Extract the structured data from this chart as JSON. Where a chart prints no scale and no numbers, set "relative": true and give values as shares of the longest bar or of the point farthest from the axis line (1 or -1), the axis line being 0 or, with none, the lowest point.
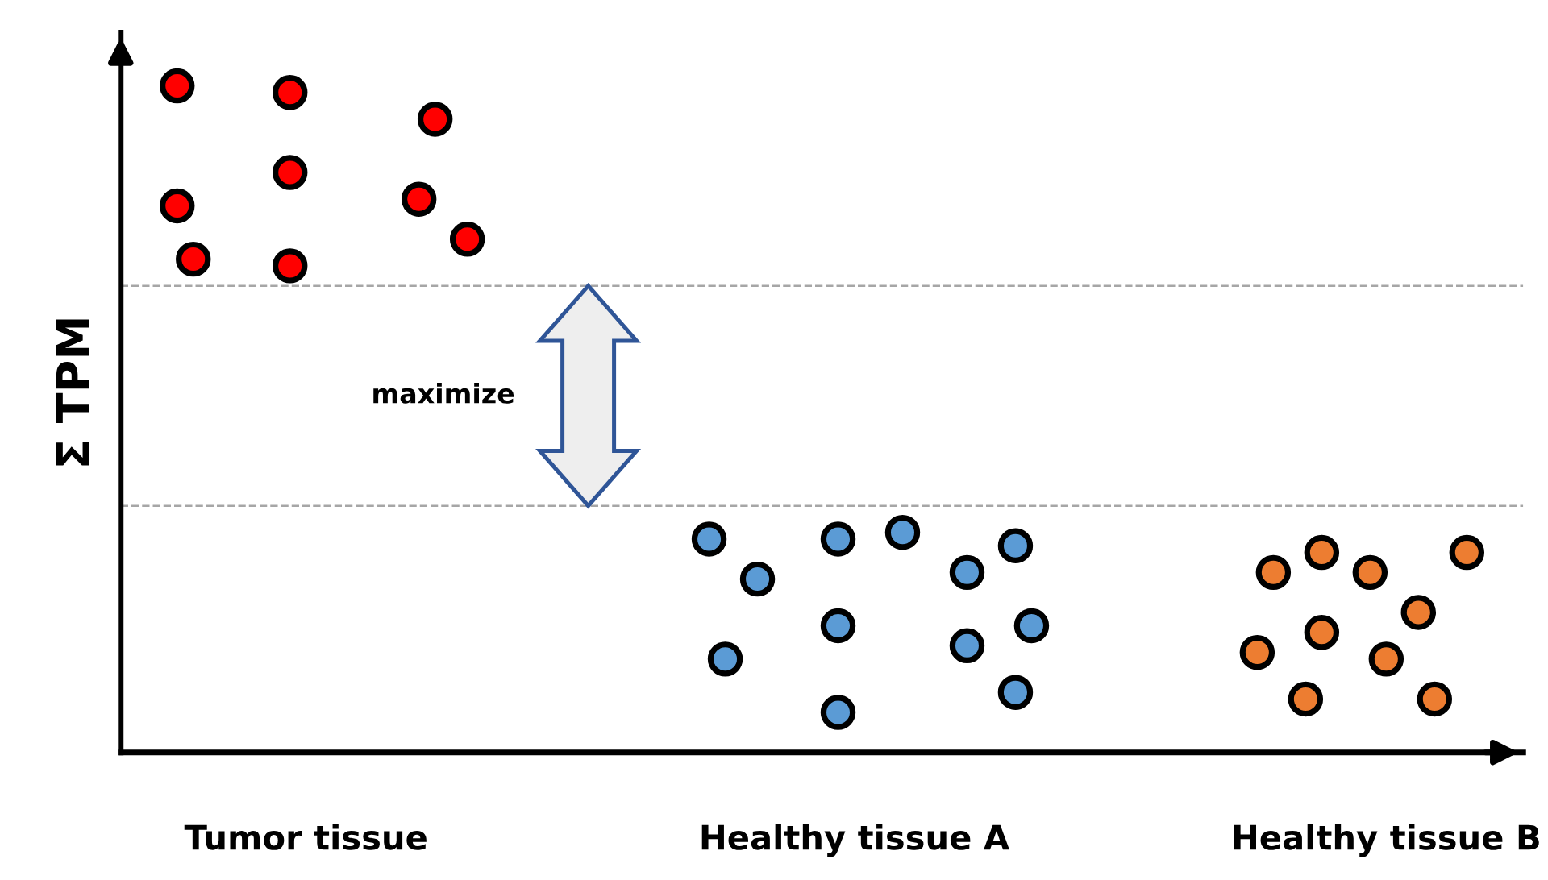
{
  "chart_data": {
    "type": "scatter",
    "ylabel": "Σ TPM",
    "relative": true,
    "categories": [
      null,
      null,
      null,
      null,
      null,
      null,
      null,
      null,
      null,
      null,
      null,
      "Tumor tissue",
      null,
      null,
      null,
      null,
      null,
      null,
      null,
      null,
      null,
      null,
      null,
      null,
      null,
      null,
      null,
      null,
      null,
      null,
      null,
      null,
      null,
      null,
      null,
      null,
      null,
      null,
      null,
      null,
      null,
      null,
      null,
      null,
      null,
      "Healthy tissue A",
      null,
      null,
      null,
      null,
      null,
      null,
      null,
      null,
      null,
      null,
      null,
      null,
      null,
      null,
      null,
      null,
      null,
      null,
      null,
      null,
      null,
      null,
      null,
      null,
      null,
      null,
      null,
      null,
      null,
      null,
      null,
      null,
      "Healthy tissue B",
      null,
      null,
      null,
      null,
      null,
      null,
      null,
      null
    ],
    "tick_labels": "x",
    "grid": false,
    "legend": false,
    "marker": "circle",
    "series": [
      {
        "color": "#ff0000",
        "values": [
          null,
          null,
          null,
          1.0,
          0.74,
          null,
          null,
          null,
          null,
          null,
          0.99,
          null,
          null,
          null,
          null,
          null,
          null,
          null,
          0.83,
          0.95,
          null,
          0.77,
          null,
          null,
          null,
          null,
          null,
          null,
          null,
          null,
          null,
          null,
          null,
          null,
          null,
          null,
          null,
          null,
          null,
          null,
          null,
          null,
          null,
          null,
          null,
          null,
          null,
          null,
          null,
          null,
          null,
          null,
          null,
          null,
          null,
          null,
          null,
          null,
          null,
          null,
          null,
          null,
          null,
          null,
          null,
          null,
          null,
          null,
          null,
          null,
          null,
          null,
          null,
          null,
          null,
          null,
          null,
          null,
          null,
          null,
          null,
          null,
          null,
          null,
          null,
          null,
          null
        ]
      },
      {
        "color": "#ff0000",
        "values": [
          null,
          null,
          null,
          0.82,
          null,
          null,
          null,
          null,
          null,
          null,
          0.87,
          null,
          null,
          null,
          null,
          null,
          null,
          null,
          null,
          null,
          null,
          null,
          null,
          null,
          null,
          null,
          null,
          null,
          null,
          null,
          null,
          null,
          null,
          null,
          null,
          null,
          null,
          null,
          null,
          null,
          null,
          null,
          null,
          null,
          null,
          null,
          null,
          null,
          null,
          null,
          null,
          null,
          null,
          null,
          null,
          null,
          null,
          null,
          null,
          null,
          null,
          null,
          null,
          null,
          null,
          null,
          null,
          null,
          null,
          null,
          null,
          null,
          null,
          null,
          null,
          null,
          null,
          null,
          null,
          null,
          null,
          null,
          null,
          null,
          null,
          null,
          null
        ]
      },
      {
        "color": "#ff0000",
        "values": [
          null,
          null,
          null,
          null,
          null,
          null,
          null,
          null,
          null,
          null,
          0.73,
          null,
          null,
          null,
          null,
          null,
          null,
          null,
          null,
          null,
          null,
          null,
          null,
          null,
          null,
          null,
          null,
          null,
          null,
          null,
          null,
          null,
          null,
          null,
          null,
          null,
          null,
          null,
          null,
          null,
          null,
          null,
          null,
          null,
          null,
          null,
          null,
          null,
          null,
          null,
          null,
          null,
          null,
          null,
          null,
          null,
          null,
          null,
          null,
          null,
          null,
          null,
          null,
          null,
          null,
          null,
          null,
          null,
          null,
          null,
          null,
          null,
          null,
          null,
          null,
          null,
          null,
          null,
          null,
          null,
          null,
          null,
          null,
          null,
          null,
          null,
          null
        ]
      },
      {
        "color": "#5b9bd5",
        "values": [
          null,
          null,
          null,
          null,
          null,
          null,
          null,
          null,
          null,
          null,
          null,
          null,
          null,
          null,
          null,
          null,
          null,
          null,
          null,
          null,
          null,
          null,
          null,
          null,
          null,
          null,
          null,
          null,
          null,
          null,
          null,
          null,
          null,
          null,
          null,
          null,
          0.32,
          0.14,
          null,
          0.26,
          null,
          null,
          null,
          null,
          0.32,
          null,
          null,
          null,
          0.33,
          null,
          null,
          null,
          0.27,
          null,
          null,
          0.31,
          0.19,
          null,
          null,
          null,
          null,
          null,
          null,
          null,
          null,
          null,
          null,
          null,
          null,
          null,
          null,
          null,
          null,
          null,
          null,
          null,
          null,
          null,
          null,
          null,
          null,
          null,
          null,
          null,
          null,
          null,
          null
        ]
      },
      {
        "color": "#5b9bd5",
        "values": [
          null,
          null,
          null,
          null,
          null,
          null,
          null,
          null,
          null,
          null,
          null,
          null,
          null,
          null,
          null,
          null,
          null,
          null,
          null,
          null,
          null,
          null,
          null,
          null,
          null,
          null,
          null,
          null,
          null,
          null,
          null,
          null,
          null,
          null,
          null,
          null,
          null,
          null,
          null,
          null,
          null,
          null,
          null,
          null,
          0.19,
          null,
          null,
          null,
          null,
          null,
          null,
          null,
          0.16,
          null,
          null,
          0.09,
          null,
          null,
          null,
          null,
          null,
          null,
          null,
          null,
          null,
          null,
          null,
          null,
          null,
          null,
          null,
          null,
          null,
          null,
          null,
          null,
          null,
          null,
          null,
          null,
          null,
          null,
          null,
          null,
          null,
          null,
          null
        ]
      },
      {
        "color": "#5b9bd5",
        "values": [
          null,
          null,
          null,
          null,
          null,
          null,
          null,
          null,
          null,
          null,
          null,
          null,
          null,
          null,
          null,
          null,
          null,
          null,
          null,
          null,
          null,
          null,
          null,
          null,
          null,
          null,
          null,
          null,
          null,
          null,
          null,
          null,
          null,
          null,
          null,
          null,
          null,
          null,
          null,
          null,
          null,
          null,
          null,
          null,
          0.06,
          null,
          null,
          null,
          null,
          null,
          null,
          null,
          null,
          null,
          null,
          null,
          null,
          null,
          null,
          null,
          null,
          null,
          null,
          null,
          null,
          null,
          null,
          null,
          null,
          null,
          null,
          null,
          null,
          null,
          null,
          null,
          null,
          null,
          null,
          null,
          null,
          null,
          null,
          null,
          null,
          null,
          null
        ]
      },
      {
        "color": "#ed7d31",
        "values": [
          null,
          null,
          null,
          null,
          null,
          null,
          null,
          null,
          null,
          null,
          null,
          null,
          null,
          null,
          null,
          null,
          null,
          null,
          null,
          null,
          null,
          null,
          null,
          null,
          null,
          null,
          null,
          null,
          null,
          null,
          null,
          null,
          null,
          null,
          null,
          null,
          null,
          null,
          null,
          null,
          null,
          null,
          null,
          null,
          null,
          null,
          null,
          null,
          null,
          null,
          null,
          null,
          null,
          null,
          null,
          null,
          null,
          null,
          null,
          null,
          null,
          null,
          null,
          null,
          null,
          null,
          null,
          null,
          null,
          null,
          0.15,
          0.27,
          null,
          0.08,
          0.3,
          null,
          null,
          0.27,
          0.14,
          null,
          0.21,
          0.08,
          null,
          0.3,
          null,
          null,
          null
        ]
      },
      {
        "color": "#ed7d31",
        "values": [
          null,
          null,
          null,
          null,
          null,
          null,
          null,
          null,
          null,
          null,
          null,
          null,
          null,
          null,
          null,
          null,
          null,
          null,
          null,
          null,
          null,
          null,
          null,
          null,
          null,
          null,
          null,
          null,
          null,
          null,
          null,
          null,
          null,
          null,
          null,
          null,
          null,
          null,
          null,
          null,
          null,
          null,
          null,
          null,
          null,
          null,
          null,
          null,
          null,
          null,
          null,
          null,
          null,
          null,
          null,
          null,
          null,
          null,
          null,
          null,
          null,
          null,
          null,
          null,
          null,
          null,
          null,
          null,
          null,
          null,
          null,
          null,
          null,
          null,
          0.18,
          null,
          null,
          null,
          null,
          null,
          null,
          null,
          null,
          null,
          null,
          null,
          null
        ]
      }
    ],
    "ref_lines": [
      {
        "axis": "y",
        "value": 0.7,
        "color": "#a6a6a6",
        "line_style": "dashed"
      },
      {
        "axis": "y",
        "value": 0.37,
        "color": "#a6a6a6",
        "line_style": "dashed"
      }
    ],
    "annotations": [
      "maximize"
    ]
  }
}
